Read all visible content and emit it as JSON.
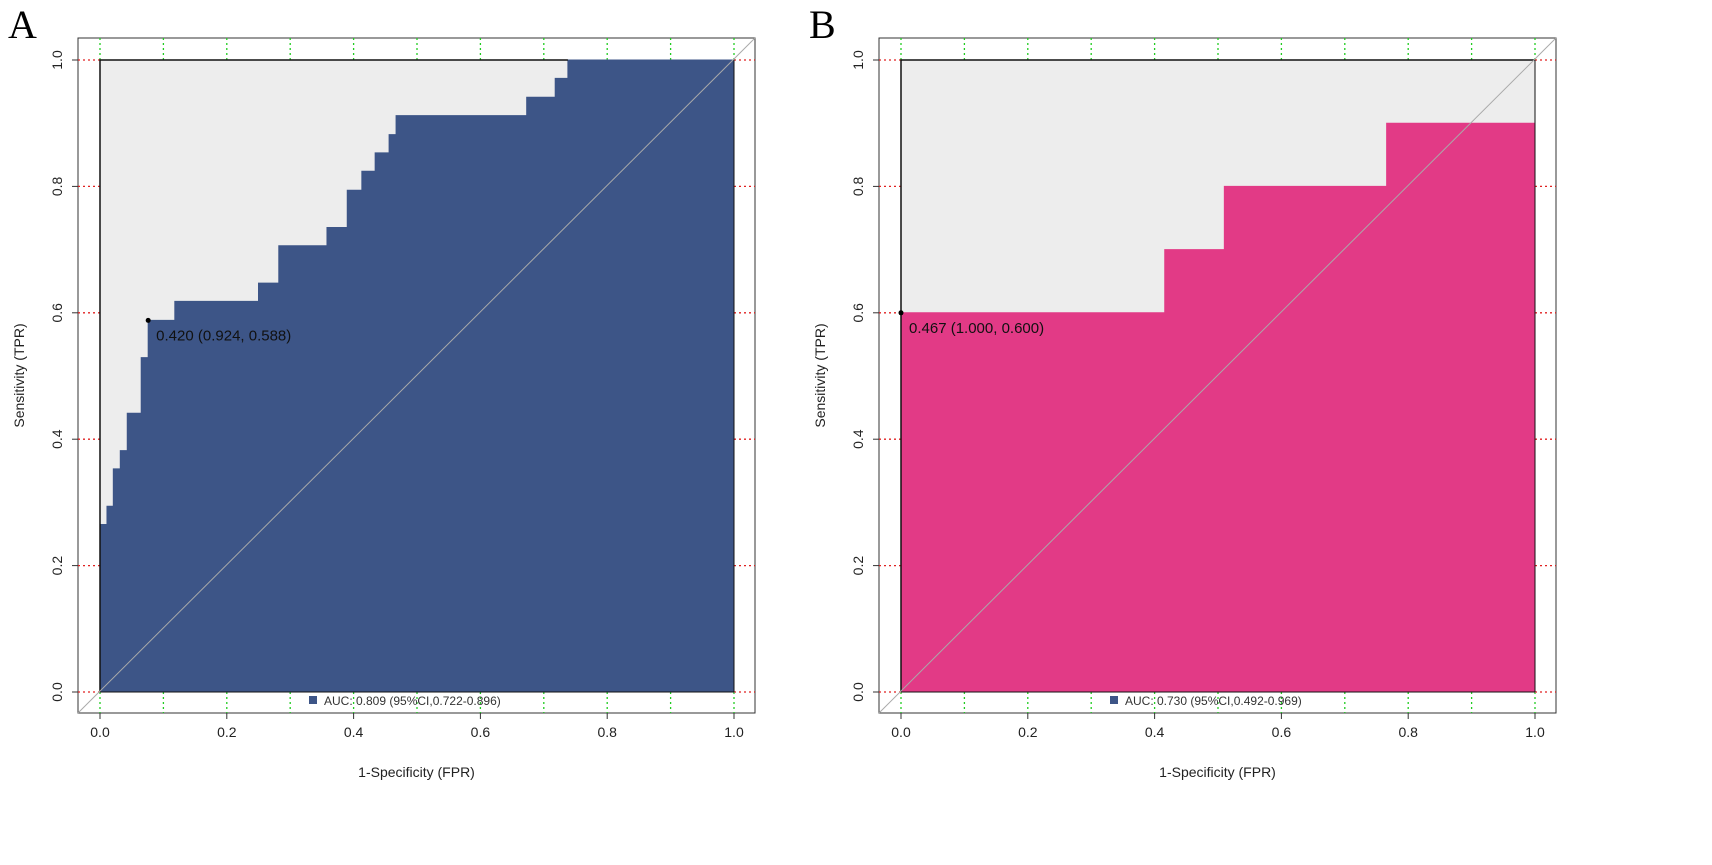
{
  "chart_data": [
    {
      "type": "area",
      "panel_label": "A",
      "title": "",
      "xlabel": "1-Specificity (FPR)",
      "ylabel": "Sensitivity (TPR)",
      "xlim": [
        0,
        1
      ],
      "ylim": [
        0,
        1
      ],
      "xticks": [
        "0.0",
        "0.2",
        "0.4",
        "0.6",
        "0.8",
        "1.0"
      ],
      "yticks": [
        "0.0",
        "0.2",
        "0.4",
        "0.6",
        "0.8",
        "1.0"
      ],
      "color": "#3d5587",
      "roc_points": [
        [
          0,
          0
        ],
        [
          0,
          0.265
        ],
        [
          0.011,
          0.265
        ],
        [
          0.011,
          0.294
        ],
        [
          0.021,
          0.294
        ],
        [
          0.021,
          0.353
        ],
        [
          0.032,
          0.353
        ],
        [
          0.032,
          0.382
        ],
        [
          0.043,
          0.382
        ],
        [
          0.043,
          0.441
        ],
        [
          0.065,
          0.441
        ],
        [
          0.065,
          0.529
        ],
        [
          0.076,
          0.529
        ],
        [
          0.076,
          0.588
        ],
        [
          0.118,
          0.588
        ],
        [
          0.118,
          0.618
        ],
        [
          0.25,
          0.618
        ],
        [
          0.25,
          0.647
        ],
        [
          0.282,
          0.647
        ],
        [
          0.282,
          0.706
        ],
        [
          0.358,
          0.706
        ],
        [
          0.358,
          0.735
        ],
        [
          0.39,
          0.735
        ],
        [
          0.39,
          0.794
        ],
        [
          0.413,
          0.794
        ],
        [
          0.413,
          0.824
        ],
        [
          0.434,
          0.824
        ],
        [
          0.434,
          0.853
        ],
        [
          0.456,
          0.853
        ],
        [
          0.456,
          0.882
        ],
        [
          0.467,
          0.882
        ],
        [
          0.467,
          0.912
        ],
        [
          0.673,
          0.912
        ],
        [
          0.673,
          0.941
        ],
        [
          0.718,
          0.941
        ],
        [
          0.718,
          0.971
        ],
        [
          0.738,
          0.971
        ],
        [
          0.738,
          1
        ],
        [
          1,
          1
        ]
      ],
      "best_point": {
        "fpr": 0.076,
        "tpr": 0.588,
        "label": "0.420 (0.924, 0.588)"
      },
      "legend": "AUC: 0.809 (95%CI,0.722-0.896)",
      "auc": 0.809
    },
    {
      "type": "area",
      "panel_label": "B",
      "title": "",
      "xlabel": "1-Specificity (FPR)",
      "ylabel": "Sensitivity (TPR)",
      "xlim": [
        0,
        1
      ],
      "ylim": [
        0,
        1
      ],
      "xticks": [
        "0.0",
        "0.2",
        "0.4",
        "0.6",
        "0.8",
        "1.0"
      ],
      "yticks": [
        "0.0",
        "0.2",
        "0.4",
        "0.6",
        "0.8",
        "1.0"
      ],
      "color": "#e23a86",
      "roc_points": [
        [
          0,
          0
        ],
        [
          0,
          0.6
        ],
        [
          0.416,
          0.6
        ],
        [
          0.416,
          0.7
        ],
        [
          0.51,
          0.7
        ],
        [
          0.51,
          0.8
        ],
        [
          0.766,
          0.8
        ],
        [
          0.766,
          0.9
        ],
        [
          1,
          0.9
        ],
        [
          1,
          1
        ]
      ],
      "best_point": {
        "fpr": 0,
        "tpr": 0.6,
        "label": "0.467 (1.000, 0.600)"
      },
      "legend": "AUC: 0.730 (95%CI,0.492-0.969)",
      "legend_color": "#3d5587",
      "auc": 0.73
    }
  ]
}
